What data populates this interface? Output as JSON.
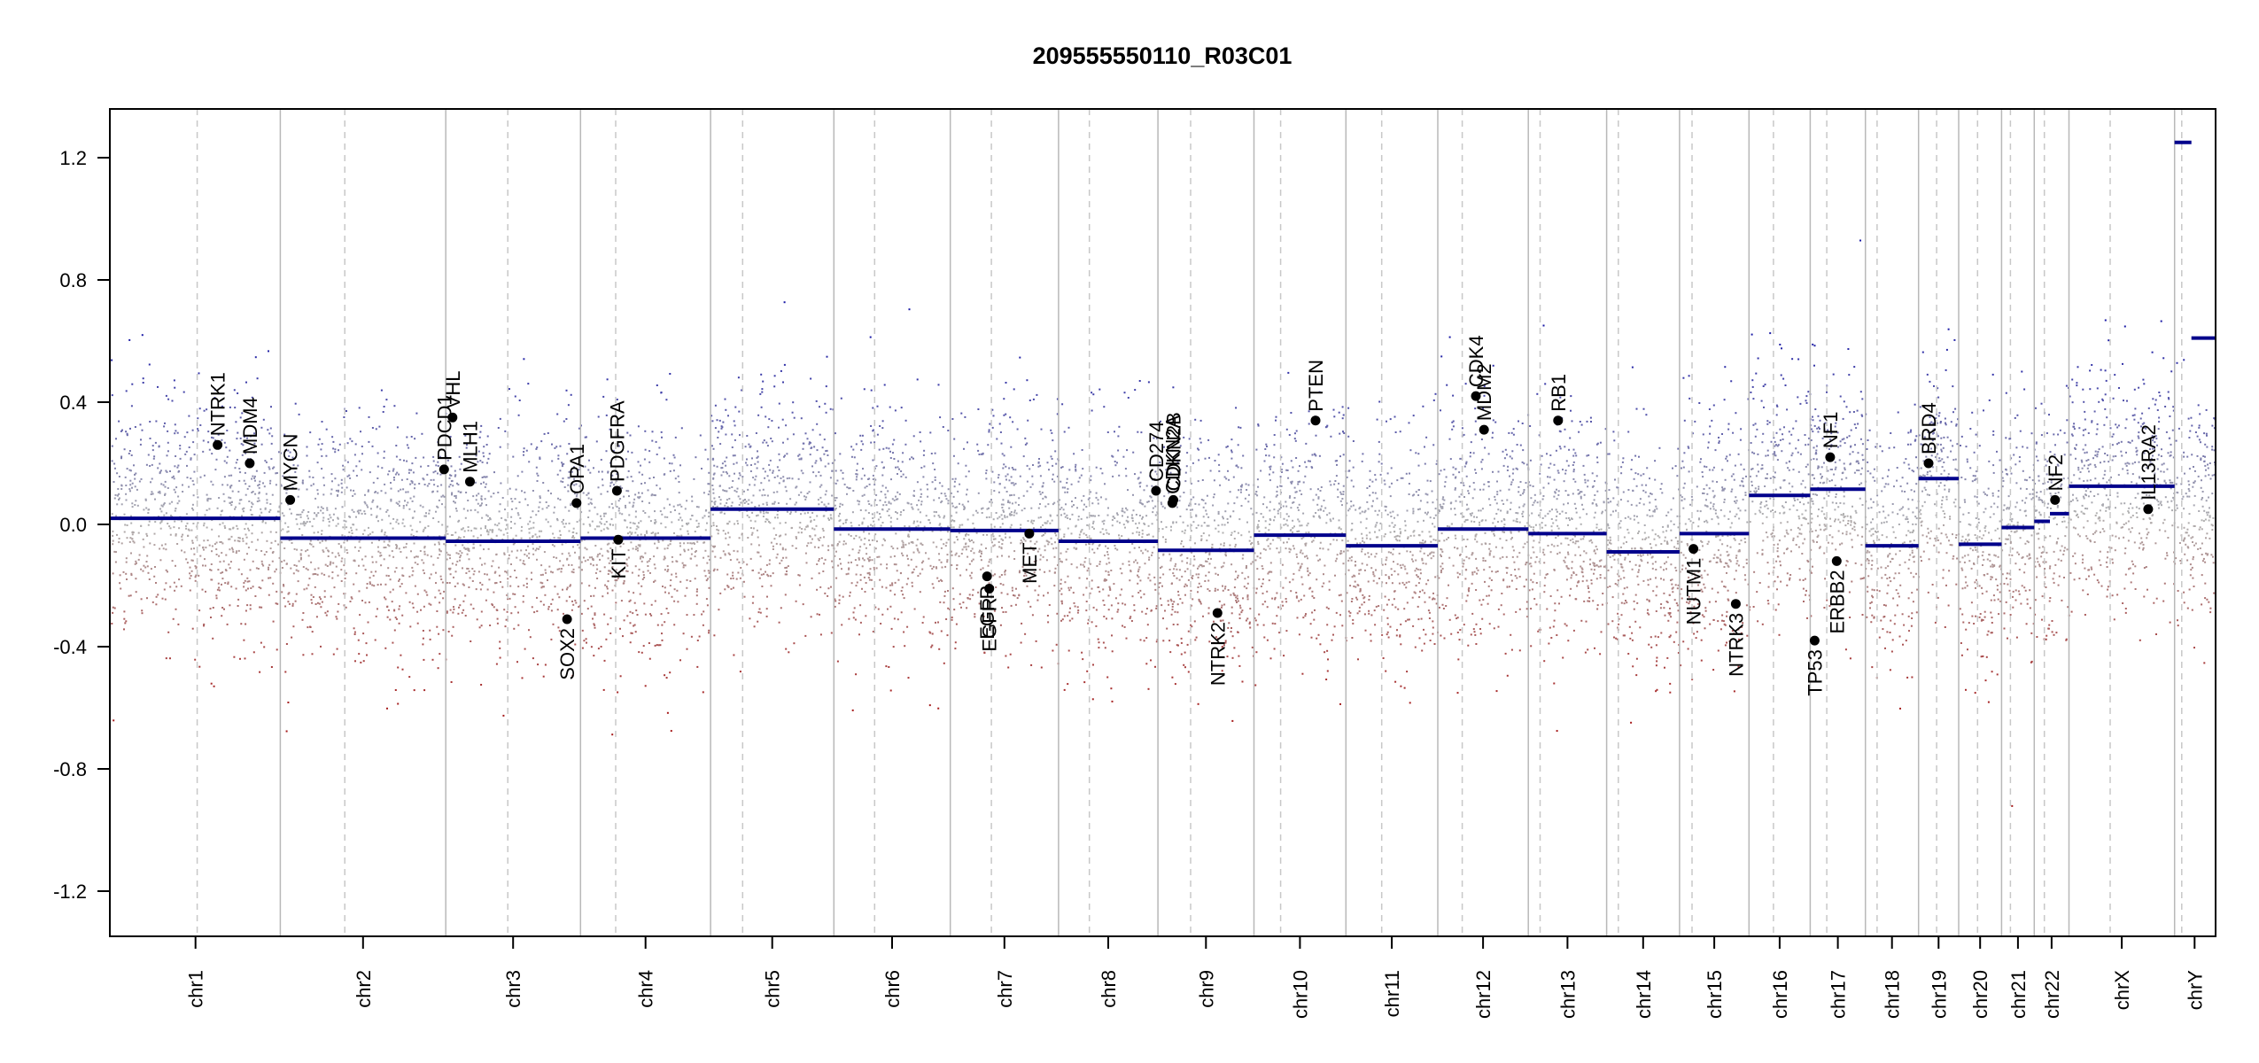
{
  "chart_data": {
    "type": "scatter",
    "title": "209555550110_R03C01",
    "xlabel": "",
    "ylabel": "",
    "ylim": [
      -1.35,
      1.35
    ],
    "y_ticks": [
      -1.2,
      -0.8,
      -0.4,
      0.0,
      0.4,
      0.8,
      1.2
    ],
    "y_tick_labels": [
      "-1.2",
      "-0.8",
      "-0.4",
      "0.0",
      "0.4",
      "0.8",
      "1.2"
    ],
    "colors": {
      "gain": "#1a1aa6",
      "loss": "#a61a1a",
      "neutral": "#b0b0b0",
      "segment": "#00008b",
      "gene": "#000000"
    },
    "chromosomes": [
      {
        "name": "chr1",
        "size": 249,
        "centromere": 0.51,
        "segments": [
          {
            "from": 0,
            "to": 1,
            "value": 0.02
          }
        ]
      },
      {
        "name": "chr2",
        "size": 243,
        "centromere": 0.39,
        "segments": [
          {
            "from": 0,
            "to": 1,
            "value": -0.045
          }
        ]
      },
      {
        "name": "chr3",
        "size": 198,
        "centromere": 0.46,
        "segments": [
          {
            "from": 0,
            "to": 1,
            "value": -0.055
          }
        ]
      },
      {
        "name": "chr4",
        "size": 191,
        "centromere": 0.27,
        "segments": [
          {
            "from": 0,
            "to": 1,
            "value": -0.045
          }
        ]
      },
      {
        "name": "chr5",
        "size": 181,
        "centromere": 0.26,
        "segments": [
          {
            "from": 0,
            "to": 1,
            "value": 0.05
          }
        ]
      },
      {
        "name": "chr6",
        "size": 171,
        "centromere": 0.35,
        "segments": [
          {
            "from": 0,
            "to": 1,
            "value": -0.015
          }
        ]
      },
      {
        "name": "chr7",
        "size": 159,
        "centromere": 0.38,
        "segments": [
          {
            "from": 0,
            "to": 1,
            "value": -0.02
          }
        ]
      },
      {
        "name": "chr8",
        "size": 146,
        "centromere": 0.31,
        "segments": [
          {
            "from": 0,
            "to": 1,
            "value": -0.055
          }
        ]
      },
      {
        "name": "chr9",
        "size": 141,
        "centromere": 0.34,
        "segments": [
          {
            "from": 0,
            "to": 1,
            "value": -0.085
          }
        ]
      },
      {
        "name": "chr10",
        "size": 135,
        "centromere": 0.29,
        "segments": [
          {
            "from": 0,
            "to": 1,
            "value": -0.035
          }
        ]
      },
      {
        "name": "chr11",
        "size": 135,
        "centromere": 0.39,
        "segments": [
          {
            "from": 0,
            "to": 1,
            "value": -0.07
          }
        ]
      },
      {
        "name": "chr12",
        "size": 133,
        "centromere": 0.27,
        "segments": [
          {
            "from": 0,
            "to": 1,
            "value": -0.015
          }
        ]
      },
      {
        "name": "chr13",
        "size": 115,
        "centromere": 0.15,
        "segments": [
          {
            "from": 0,
            "to": 1,
            "value": -0.03
          }
        ]
      },
      {
        "name": "chr14",
        "size": 107,
        "centromere": 0.16,
        "segments": [
          {
            "from": 0,
            "to": 1,
            "value": -0.09
          }
        ]
      },
      {
        "name": "chr15",
        "size": 102,
        "centromere": 0.18,
        "segments": [
          {
            "from": 0,
            "to": 1,
            "value": -0.03
          }
        ]
      },
      {
        "name": "chr16",
        "size": 90,
        "centromere": 0.4,
        "segments": [
          {
            "from": 0,
            "to": 1,
            "value": 0.095
          }
        ]
      },
      {
        "name": "chr17",
        "size": 81,
        "centromere": 0.3,
        "segments": [
          {
            "from": 0,
            "to": 1,
            "value": 0.115
          }
        ]
      },
      {
        "name": "chr18",
        "size": 78,
        "centromere": 0.22,
        "segments": [
          {
            "from": 0,
            "to": 1,
            "value": -0.07
          }
        ]
      },
      {
        "name": "chr19",
        "size": 59,
        "centromere": 0.45,
        "segments": [
          {
            "from": 0,
            "to": 1,
            "value": 0.15
          }
        ]
      },
      {
        "name": "chr20",
        "size": 63,
        "centromere": 0.44,
        "segments": [
          {
            "from": 0,
            "to": 1,
            "value": -0.065
          }
        ]
      },
      {
        "name": "chr21",
        "size": 48,
        "centromere": 0.27,
        "segments": [
          {
            "from": 0,
            "to": 1,
            "value": -0.01
          }
        ]
      },
      {
        "name": "chr22",
        "size": 51,
        "centromere": 0.29,
        "segments": [
          {
            "from": 0,
            "to": 0.45,
            "value": 0.01
          },
          {
            "from": 0.45,
            "to": 1,
            "value": 0.035
          }
        ]
      },
      {
        "name": "chrX",
        "size": 155,
        "centromere": 0.39,
        "segments": [
          {
            "from": 0,
            "to": 1,
            "value": 0.125
          }
        ]
      },
      {
        "name": "chrY",
        "size": 59,
        "centromere": 0.18,
        "segments": [
          {
            "from": 0,
            "to": 0.42,
            "value": 1.25
          },
          {
            "from": 0.42,
            "to": 1,
            "value": 0.61
          }
        ]
      }
    ],
    "genes": [
      {
        "name": "NTRK1",
        "chr": "chr1",
        "pos": 0.63,
        "value": 0.26
      },
      {
        "name": "MDM4",
        "chr": "chr1",
        "pos": 0.82,
        "value": 0.2
      },
      {
        "name": "MYCN",
        "chr": "chr2",
        "pos": 0.06,
        "value": 0.08
      },
      {
        "name": "PDCD1",
        "chr": "chr2",
        "pos": 0.99,
        "value": 0.18
      },
      {
        "name": "VHL",
        "chr": "chr3",
        "pos": 0.05,
        "value": 0.35
      },
      {
        "name": "MLH1",
        "chr": "chr3",
        "pos": 0.18,
        "value": 0.14
      },
      {
        "name": "SOX2",
        "chr": "chr3",
        "pos": 0.9,
        "value": -0.31
      },
      {
        "name": "OPA1",
        "chr": "chr3",
        "pos": 0.97,
        "value": 0.07
      },
      {
        "name": "PDGFRA",
        "chr": "chr4",
        "pos": 0.28,
        "value": 0.11
      },
      {
        "name": "KIT",
        "chr": "chr4",
        "pos": 0.29,
        "value": -0.05
      },
      {
        "name": "EGFR",
        "chr": "chr7",
        "pos": 0.34,
        "value": -0.17
      },
      {
        "name": "EGFR",
        "chr": "chr7",
        "pos": 0.36,
        "value": -0.21
      },
      {
        "name": "MET",
        "chr": "chr7",
        "pos": 0.73,
        "value": -0.03
      },
      {
        "name": "CD274",
        "chr": "chr8",
        "pos": 0.98,
        "value": 0.11
      },
      {
        "name": "CDKN2A",
        "chr": "chr9",
        "pos": 0.15,
        "value": 0.07
      },
      {
        "name": "CDKN2B",
        "chr": "chr9",
        "pos": 0.16,
        "value": 0.08
      },
      {
        "name": "NTRK2",
        "chr": "chr9",
        "pos": 0.62,
        "value": -0.29
      },
      {
        "name": "PTEN",
        "chr": "chr10",
        "pos": 0.67,
        "value": 0.34
      },
      {
        "name": "CDK4",
        "chr": "chr12",
        "pos": 0.42,
        "value": 0.42
      },
      {
        "name": "MDM2",
        "chr": "chr12",
        "pos": 0.51,
        "value": 0.31
      },
      {
        "name": "RB1",
        "chr": "chr13",
        "pos": 0.38,
        "value": 0.34
      },
      {
        "name": "NUTM1",
        "chr": "chr15",
        "pos": 0.2,
        "value": -0.08
      },
      {
        "name": "NTRK3",
        "chr": "chr15",
        "pos": 0.81,
        "value": -0.26
      },
      {
        "name": "TP53",
        "chr": "chr17",
        "pos": 0.08,
        "value": -0.38
      },
      {
        "name": "NF1",
        "chr": "chr17",
        "pos": 0.36,
        "value": 0.22
      },
      {
        "name": "ERBB2",
        "chr": "chr17",
        "pos": 0.48,
        "value": -0.12
      },
      {
        "name": "BRD4",
        "chr": "chr19",
        "pos": 0.25,
        "value": 0.2
      },
      {
        "name": "NF2",
        "chr": "chr22",
        "pos": 0.6,
        "value": 0.08
      },
      {
        "name": "IL13RA2",
        "chr": "chrX",
        "pos": 0.75,
        "value": 0.05
      }
    ]
  }
}
